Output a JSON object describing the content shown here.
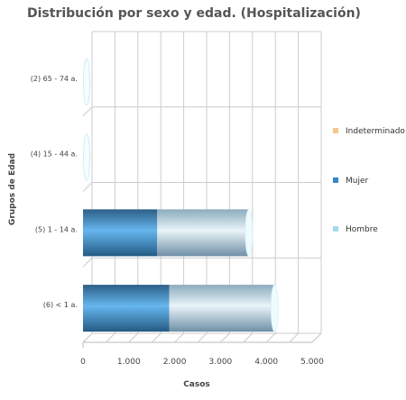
{
  "chart_data": {
    "type": "bar",
    "orientation": "horizontal",
    "stacked": true,
    "style": "3d-cylinder",
    "title": "Distribución por sexo y edad. (Hospitalización)",
    "xlabel": "Casos",
    "ylabel": "Grupos de Edad",
    "xlim": [
      0,
      5000
    ],
    "x_ticks": [
      "0",
      "1.000",
      "2.000",
      "3.000",
      "4.000",
      "5.000"
    ],
    "grid": true,
    "legend_position": "right",
    "categories": [
      "(2) 65 - 74 a.",
      "(4) 15 - 44 a.",
      "(5) 1 - 14 a.",
      "(6) < 1 a."
    ],
    "series": [
      {
        "name": "Hombre",
        "color": "#a8d8f0",
        "values": [
          0,
          0,
          2000,
          2300
        ]
      },
      {
        "name": "Mujer",
        "color": "#3a86c4",
        "values": [
          0,
          0,
          1620,
          1880
        ]
      },
      {
        "name": "Indeterminado",
        "color": "#f5c98a",
        "values": [
          0,
          0,
          0,
          0
        ]
      }
    ],
    "legend_order": [
      "Indeterminado",
      "Mujer",
      "Hombre"
    ]
  }
}
